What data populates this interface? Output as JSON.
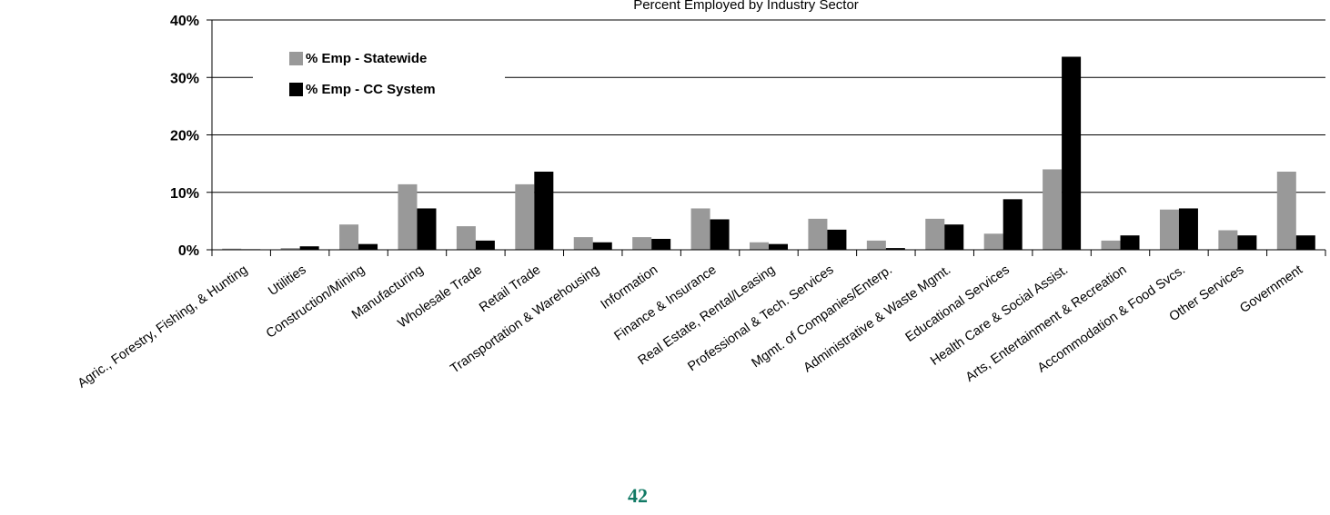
{
  "page_number": "42",
  "chart_data": {
    "type": "bar",
    "title": "Percent Employed by Industry Sector",
    "xlabel": "",
    "ylabel": "",
    "ylim": [
      0,
      40
    ],
    "yticks": [
      "0%",
      "10%",
      "20%",
      "30%",
      "40%"
    ],
    "ytick_values": [
      0,
      10,
      20,
      30,
      40
    ],
    "grid": true,
    "legend_position": "top-left",
    "categories": [
      "Agric., Forestry, Fishing, & Hunting",
      "Utilities",
      "Construction/Mining",
      "Manufacturing",
      "Wholesale Trade",
      "Retail Trade",
      "Transportation & Warehousing",
      "Information",
      "Finance & Insurance",
      "Real Estate, Rental/Leasing",
      "Professional & Tech. Services",
      "Mgmt. of Companies/Enterp.",
      "Administrative & Waste Mgmt.",
      "Educational Services",
      "Health Care & Social Assist.",
      "Arts, Entertainment & Recreation",
      "Accommodation & Food Svcs.",
      "Other Services",
      "Government"
    ],
    "series": [
      {
        "name": "% Emp - Statewide",
        "color": "#999999",
        "values": [
          0.2,
          0.3,
          4.4,
          11.4,
          4.1,
          11.4,
          2.2,
          2.2,
          7.2,
          1.3,
          5.4,
          1.6,
          5.4,
          2.8,
          14.0,
          1.6,
          7.0,
          3.4,
          13.6
        ]
      },
      {
        "name": "% Emp - CC System",
        "color": "#000000",
        "values": [
          0.1,
          0.6,
          1.0,
          7.2,
          1.6,
          13.6,
          1.3,
          1.9,
          5.3,
          1.0,
          3.5,
          0.3,
          4.4,
          8.8,
          33.6,
          2.5,
          7.2,
          2.5,
          2.5
        ]
      }
    ]
  }
}
